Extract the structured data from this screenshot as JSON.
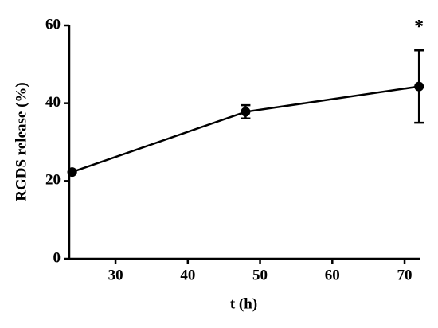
{
  "chart_data": {
    "type": "line",
    "x_label": "t (h)",
    "y_label": "RGDS release (%)",
    "x": [
      24,
      48,
      72
    ],
    "series": [
      {
        "name": "RGDS",
        "color": "#000000",
        "values": [
          22.3,
          37.8,
          44.3
        ],
        "errors": [
          0,
          1.7,
          9.3
        ]
      }
    ],
    "annotation": "*",
    "xlim": [
      23.6,
      72.2
    ],
    "xticks": [
      30,
      40,
      50,
      60,
      70
    ],
    "ylim": [
      0,
      60
    ],
    "yticks": [
      0,
      20,
      40,
      60
    ]
  }
}
